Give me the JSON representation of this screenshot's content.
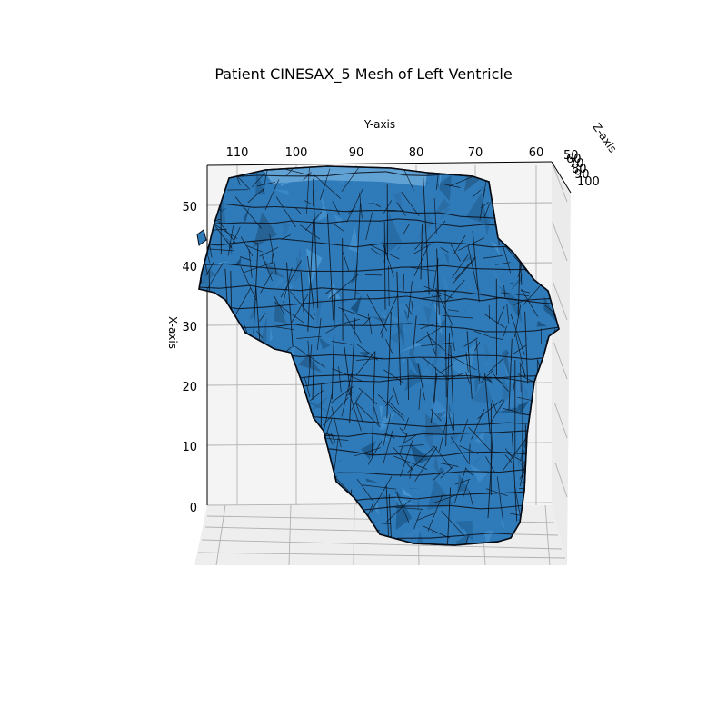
{
  "chart_data": {
    "type": "surface3d",
    "title": "Patient CINESAX_5 Mesh of Left Ventricle",
    "xlabel": "X-axis",
    "ylabel": "Y-axis",
    "zlabel": "Z-axis",
    "x_ticks": [
      "0",
      "10",
      "20",
      "30",
      "40",
      "50"
    ],
    "y_ticks": [
      "110",
      "100",
      "90",
      "80",
      "70",
      "60"
    ],
    "z_ticks": [
      "50",
      "60",
      "70",
      "80",
      "90",
      "100"
    ],
    "xlim": [
      -8,
      56
    ],
    "ylim": [
      115,
      57
    ],
    "zlim": [
      50,
      100
    ],
    "grid": true,
    "mesh_color": "#2f7ab8",
    "edge_color": "#0a0f18",
    "pane_color": "#f2f2f2",
    "grid_color": "#b0b0b0"
  }
}
